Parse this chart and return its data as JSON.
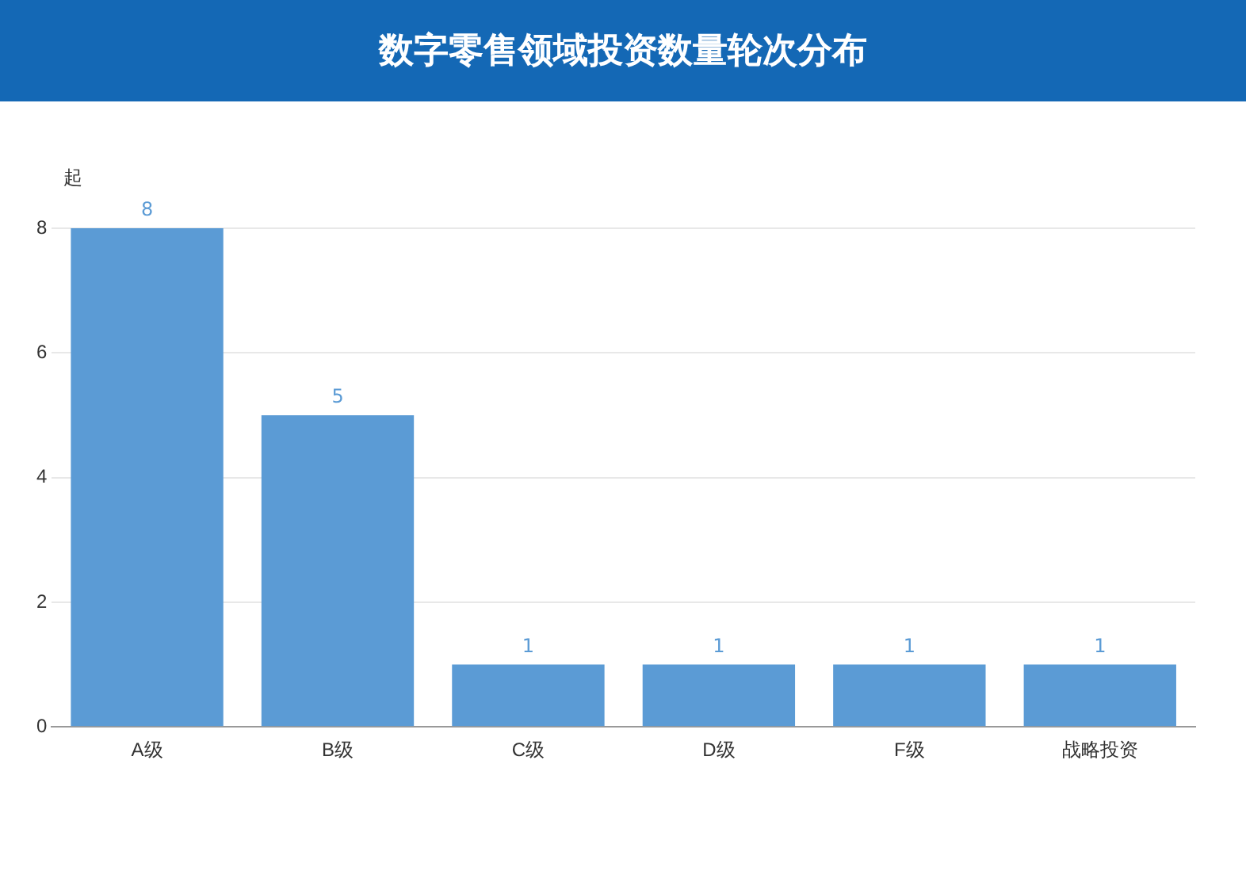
{
  "chart_data": {
    "type": "bar",
    "title": "数字零售领域投资数量轮次分布",
    "ylabel": "起",
    "categories": [
      "A级",
      "B级",
      "C级",
      "D级",
      "F级",
      "战略投资"
    ],
    "values": [
      8,
      5,
      1,
      1,
      1,
      1
    ],
    "color": "#5b9bd5",
    "ylim": [
      0,
      8
    ],
    "yticks": [
      0,
      2,
      4,
      6,
      8
    ],
    "grid": "y",
    "data_labels": true,
    "legend": false
  }
}
